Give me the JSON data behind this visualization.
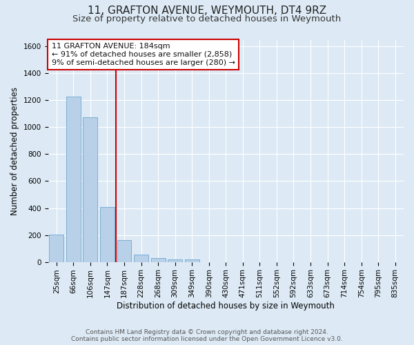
{
  "title": "11, GRAFTON AVENUE, WEYMOUTH, DT4 9RZ",
  "subtitle": "Size of property relative to detached houses in Weymouth",
  "xlabel": "Distribution of detached houses by size in Weymouth",
  "ylabel": "Number of detached properties",
  "annotation_line1": "11 GRAFTON AVENUE: 184sqm",
  "annotation_line2": "← 91% of detached houses are smaller (2,858)",
  "annotation_line3": "9% of semi-detached houses are larger (280) →",
  "footer_line1": "Contains HM Land Registry data © Crown copyright and database right 2024.",
  "footer_line2": "Contains public sector information licensed under the Open Government Licence v3.0.",
  "categories": [
    "25sqm",
    "66sqm",
    "106sqm",
    "147sqm",
    "187sqm",
    "228sqm",
    "268sqm",
    "309sqm",
    "349sqm",
    "390sqm",
    "430sqm",
    "471sqm",
    "511sqm",
    "552sqm",
    "592sqm",
    "633sqm",
    "673sqm",
    "714sqm",
    "754sqm",
    "795sqm",
    "835sqm"
  ],
  "values": [
    205,
    1225,
    1075,
    410,
    160,
    55,
    30,
    20,
    20,
    0,
    0,
    0,
    0,
    0,
    0,
    0,
    0,
    0,
    0,
    0,
    0
  ],
  "bar_color": "#b8d0e8",
  "bar_edge_color": "#7aaed4",
  "red_line_index": 4,
  "ylim": [
    0,
    1650
  ],
  "yticks": [
    0,
    200,
    400,
    600,
    800,
    1000,
    1200,
    1400,
    1600
  ],
  "background_color": "#ddeaf5",
  "grid_color": "#ffffff",
  "annotation_box_facecolor": "#ffffff",
  "annotation_border_color": "#cc0000",
  "red_line_color": "#cc0000",
  "title_fontsize": 11,
  "subtitle_fontsize": 9.5,
  "axis_label_fontsize": 8.5,
  "tick_fontsize": 7.5,
  "annotation_fontsize": 8,
  "footer_fontsize": 6.5
}
